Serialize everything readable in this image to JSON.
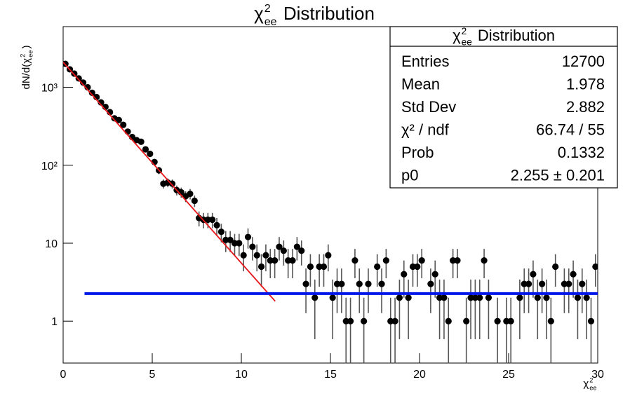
{
  "chart_data": {
    "type": "histogram",
    "title": {
      "symbol": "χ",
      "sup": "2",
      "sub": "ee",
      "suffix": " Distribution"
    },
    "xlabel": {
      "symbol": "χ",
      "sup": "2",
      "sub": "ee"
    },
    "ylabel": {
      "prefix": "dN/d(",
      "symbol": "χ",
      "sup": "2",
      "sub": "ee",
      "suffix": ")"
    },
    "log_y": true,
    "error_bars": "poisson",
    "color": "#000000",
    "xlim": [
      0,
      30
    ],
    "ylim": [
      0.29,
      6000
    ],
    "xticks": [
      0,
      5,
      10,
      15,
      20,
      25,
      30
    ],
    "yticks": [
      1,
      10,
      {
        "value": 100,
        "label": "10²"
      },
      {
        "value": 1000,
        "label": "10³"
      }
    ],
    "bins": [
      0,
      0.25,
      0.5,
      0.75,
      1,
      1.25,
      1.5,
      1.75,
      2,
      2.25,
      2.5,
      2.75,
      3,
      3.25,
      3.5,
      3.75,
      4,
      4.25,
      4.5,
      4.75,
      5,
      5.25,
      5.5,
      5.75,
      6,
      6.25,
      6.5,
      6.75,
      7,
      7.25,
      7.5,
      7.75,
      8,
      8.25,
      8.5,
      8.75,
      9,
      9.25,
      9.5,
      9.75,
      10,
      10.25,
      10.5,
      10.75,
      11,
      11.25,
      11.5,
      11.75,
      12,
      12.25,
      12.5,
      12.75,
      13,
      13.25,
      13.5,
      13.75,
      14,
      14.25,
      14.5,
      14.75,
      15,
      15.25,
      15.5,
      15.75,
      16,
      16.25,
      16.5,
      16.75,
      17,
      17.25,
      17.5,
      17.75,
      18,
      18.25,
      18.5,
      18.75,
      19,
      19.25,
      19.5,
      19.75,
      20,
      20.25,
      20.5,
      20.75,
      21,
      21.25,
      21.5,
      21.75,
      22,
      22.25,
      22.5,
      22.75,
      23,
      23.25,
      23.5,
      23.75,
      24,
      24.25,
      24.5,
      24.75,
      25,
      25.25,
      25.5,
      25.75,
      26,
      26.25,
      26.5,
      26.75,
      27,
      27.25,
      27.5,
      27.75,
      28,
      28.25,
      28.5,
      28.75,
      29,
      29.25,
      29.5,
      29.75,
      30
    ],
    "values": [
      2000,
      1700,
      1500,
      1300,
      1150,
      1000,
      850,
      750,
      640,
      560,
      480,
      400,
      380,
      330,
      270,
      230,
      210,
      200,
      160,
      140,
      110,
      86,
      58,
      60,
      58,
      48,
      45,
      40,
      43,
      35,
      21,
      20,
      20,
      20,
      17,
      14,
      11,
      11,
      10,
      10,
      7,
      12,
      9,
      7,
      5,
      7,
      6,
      6,
      9,
      8,
      6,
      6,
      9,
      8,
      3,
      5,
      2,
      5,
      5,
      7,
      2,
      3,
      3,
      1,
      1,
      6,
      3,
      1,
      3,
      0,
      5,
      3,
      6,
      1,
      1,
      2,
      4,
      2,
      5,
      5,
      6,
      0,
      3,
      4,
      2,
      2,
      1,
      6,
      6,
      0,
      1,
      2,
      2,
      2,
      6,
      2,
      0,
      1,
      0,
      1,
      1,
      0,
      2,
      3,
      3,
      4,
      2,
      3,
      2,
      1,
      5,
      0,
      3,
      3,
      4,
      2,
      3,
      2,
      1,
      5
    ],
    "fits": [
      {
        "color": "#e8161b",
        "x": [
          0,
          11.9
        ],
        "values": [
          2100,
          1.8
        ]
      },
      {
        "color": "#0016e8",
        "x": [
          1.2,
          30
        ],
        "values": [
          2.255,
          2.255
        ]
      }
    ],
    "stats": {
      "title": {
        "symbol": "χ",
        "sup": "2",
        "sub": "ee",
        "suffix": " Distribution"
      },
      "rows": [
        [
          "Entries",
          "12700"
        ],
        [
          "Mean",
          "1.978"
        ],
        [
          "Std Dev",
          "2.882"
        ],
        [
          "χ² / ndf",
          "66.74 / 55"
        ],
        [
          "Prob",
          "0.1332"
        ],
        [
          "p0",
          "2.255 ± 0.201"
        ]
      ]
    }
  }
}
